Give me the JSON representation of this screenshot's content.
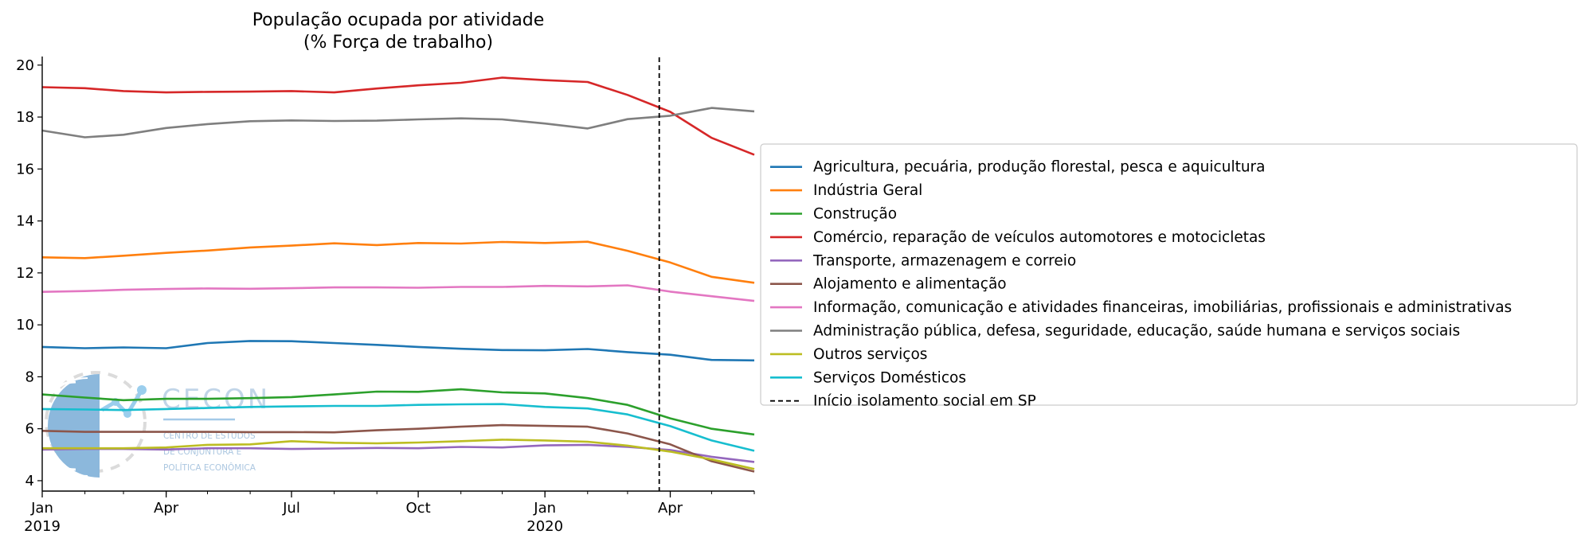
{
  "chart_data": {
    "type": "line",
    "title_lines": [
      "População ocupada por atividade",
      "(% Força de trabalho)"
    ],
    "xlabel": "",
    "ylabel": "",
    "ylim": [
      3.6,
      20.3
    ],
    "yticks": [
      4,
      6,
      8,
      10,
      12,
      14,
      16,
      18,
      20
    ],
    "x": [
      "2019-01",
      "2019-02",
      "2019-03",
      "2019-04",
      "2019-05",
      "2019-06",
      "2019-07",
      "2019-08",
      "2019-09",
      "2019-10",
      "2019-11",
      "2019-12",
      "2020-01",
      "2020-02",
      "2020-03",
      "2020-04",
      "2020-05",
      "2020-06"
    ],
    "xticks": [
      {
        "x": "2019-01",
        "label": "Jan",
        "sublabel": "2019"
      },
      {
        "x": "2019-04",
        "label": "Apr",
        "sublabel": ""
      },
      {
        "x": "2019-07",
        "label": "Jul",
        "sublabel": ""
      },
      {
        "x": "2019-10",
        "label": "Oct",
        "sublabel": ""
      },
      {
        "x": "2020-01",
        "label": "Jan",
        "sublabel": "2020"
      },
      {
        "x": "2020-04",
        "label": "Apr",
        "sublabel": ""
      }
    ],
    "series": [
      {
        "name": "Agricultura, pecuária, produção florestal, pesca e aquicultura",
        "color": "#1f77b4",
        "values": [
          9.15,
          9.1,
          9.13,
          9.1,
          9.3,
          9.38,
          9.37,
          9.3,
          9.23,
          9.15,
          9.08,
          9.03,
          9.02,
          9.07,
          8.95,
          8.85,
          8.65,
          8.63
        ]
      },
      {
        "name": "Indústria Geral",
        "color": "#ff7f0e",
        "values": [
          12.6,
          12.57,
          12.66,
          12.77,
          12.86,
          12.98,
          13.05,
          13.14,
          13.07,
          13.15,
          13.13,
          13.19,
          13.15,
          13.2,
          12.85,
          12.4,
          11.85,
          11.62
        ]
      },
      {
        "name": "Construção",
        "color": "#2ca02c",
        "values": [
          7.32,
          7.2,
          7.1,
          7.15,
          7.15,
          7.18,
          7.22,
          7.32,
          7.43,
          7.42,
          7.52,
          7.4,
          7.36,
          7.18,
          6.92,
          6.4,
          6.0,
          5.78
        ]
      },
      {
        "name": "Comércio, reparação de veículos automotores e motocicletas",
        "color": "#d62728",
        "values": [
          19.15,
          19.11,
          19.0,
          18.95,
          18.97,
          18.98,
          19.0,
          18.95,
          19.1,
          19.22,
          19.32,
          19.52,
          19.42,
          19.35,
          18.85,
          18.2,
          17.2,
          16.55
        ]
      },
      {
        "name": "Transporte, armazenagem e correio",
        "color": "#9467bd",
        "values": [
          5.2,
          5.22,
          5.22,
          5.2,
          5.25,
          5.25,
          5.22,
          5.24,
          5.26,
          5.25,
          5.3,
          5.28,
          5.36,
          5.38,
          5.3,
          5.18,
          4.92,
          4.72
        ]
      },
      {
        "name": "Alojamento e alimentação",
        "color": "#8c564b",
        "values": [
          5.92,
          5.88,
          5.88,
          5.88,
          5.88,
          5.87,
          5.87,
          5.86,
          5.94,
          6.0,
          6.08,
          6.14,
          6.11,
          6.08,
          5.82,
          5.4,
          4.75,
          4.35
        ]
      },
      {
        "name": "Informação, comunicação e atividades financeiras, imobiliárias, profissionais e administrativas",
        "color": "#e377c2",
        "values": [
          11.27,
          11.3,
          11.35,
          11.38,
          11.4,
          11.39,
          11.41,
          11.44,
          11.44,
          11.43,
          11.46,
          11.46,
          11.5,
          11.48,
          11.52,
          11.28,
          11.1,
          10.92
        ]
      },
      {
        "name": "Administração pública, defesa, seguridade, educação, saúde humana e serviços sociais",
        "color": "#7f7f7f",
        "values": [
          17.48,
          17.22,
          17.32,
          17.58,
          17.73,
          17.84,
          17.87,
          17.85,
          17.86,
          17.91,
          17.95,
          17.91,
          17.75,
          17.56,
          17.92,
          18.05,
          18.35,
          18.22
        ]
      },
      {
        "name": "Outros serviços",
        "color": "#bcbd22",
        "values": [
          5.25,
          5.25,
          5.25,
          5.28,
          5.38,
          5.4,
          5.52,
          5.46,
          5.44,
          5.47,
          5.52,
          5.58,
          5.55,
          5.5,
          5.35,
          5.12,
          4.82,
          4.45
        ]
      },
      {
        "name": "Serviços Domésticos",
        "color": "#17becf",
        "values": [
          6.76,
          6.74,
          6.72,
          6.76,
          6.8,
          6.84,
          6.86,
          6.88,
          6.88,
          6.92,
          6.94,
          6.95,
          6.84,
          6.78,
          6.55,
          6.1,
          5.55,
          5.15
        ]
      }
    ],
    "vline": {
      "name": "Início isolamento social em SP",
      "x": "2020-03-24",
      "style": "dashed",
      "color": "#000000"
    },
    "legend_placement": "right, outside plot area",
    "grid": false
  },
  "logo": {
    "name": "CECON",
    "lines": [
      "CENTRO DE ESTUDOS",
      "DE CONJUNTURA E",
      "POLÍTICA ECONÔMICA"
    ],
    "color": "#5aa0d6"
  }
}
